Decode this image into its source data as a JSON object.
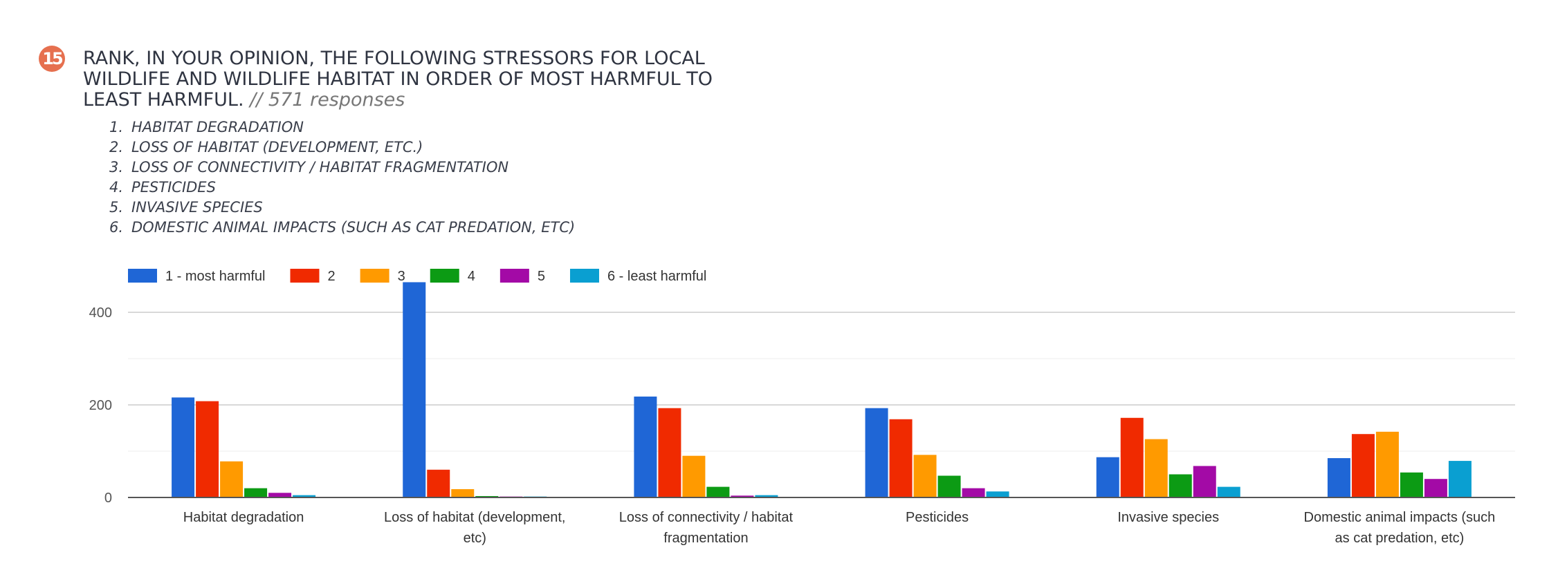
{
  "question": {
    "number": "15",
    "title": "Rank, in your opinion, the following stressors for local wildlife and wildlife habitat in order of most harmful to least harmful.",
    "responses": "// 571 responses"
  },
  "options": [
    {
      "n": "1.",
      "label": "Habitat degradation"
    },
    {
      "n": "2.",
      "label": "Loss of habitat (development, etc.)"
    },
    {
      "n": "3.",
      "label": "Loss of connectivity / habitat fragmentation"
    },
    {
      "n": "4.",
      "label": "Pesticides"
    },
    {
      "n": "5.",
      "label": "Invasive species"
    },
    {
      "n": "6.",
      "label": "Domestic animal impacts (such as cat predation, etc)"
    }
  ],
  "chart_data": {
    "type": "bar",
    "categories": [
      [
        "Habitat degradation"
      ],
      [
        "Loss of habitat (development,",
        "etc)"
      ],
      [
        "Loss of connectivity / habitat",
        "fragmentation"
      ],
      [
        "Pesticides"
      ],
      [
        "Invasive species"
      ],
      [
        "Domestic animal impacts (such",
        "as cat predation, etc)"
      ]
    ],
    "series": [
      {
        "name": "1 - most harmful",
        "color": "#1f66d6",
        "values": [
          216,
          465,
          218,
          193,
          87,
          85
        ]
      },
      {
        "name": "2",
        "color": "#f02a00",
        "values": [
          208,
          60,
          193,
          169,
          172,
          137
        ]
      },
      {
        "name": "3",
        "color": "#ff9a00",
        "values": [
          78,
          18,
          90,
          92,
          126,
          142
        ]
      },
      {
        "name": "4",
        "color": "#0c9b14",
        "values": [
          20,
          3,
          23,
          47,
          50,
          54
        ]
      },
      {
        "name": "5",
        "color": "#a30aa6",
        "values": [
          10,
          2,
          4,
          20,
          68,
          40
        ]
      },
      {
        "name": "6 - least harmful",
        "color": "#0a9fd1",
        "values": [
          5,
          2,
          5,
          13,
          23,
          79
        ]
      }
    ],
    "y_ticks": [
      "0",
      "200",
      "400"
    ],
    "ylim": [
      0,
      500
    ],
    "legend_position": "top-left",
    "grid": true
  }
}
